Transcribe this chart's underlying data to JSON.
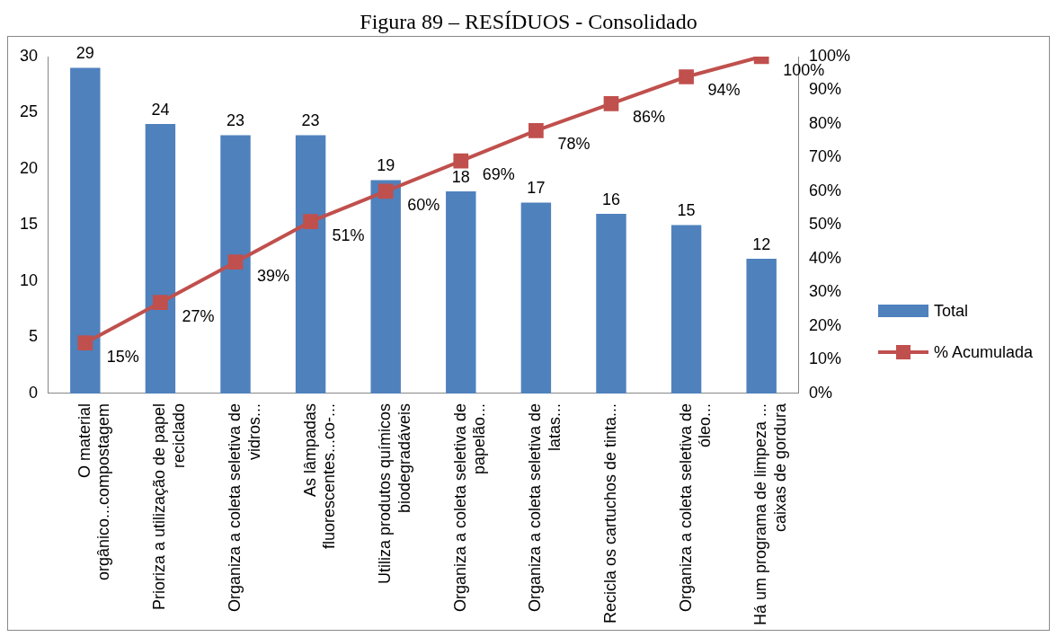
{
  "chart_data": {
    "type": "bar",
    "title": "Figura 89 – RESÍDUOS - Consolidado",
    "categories": [
      "O material\norgânico...compostagem",
      "Prioriza a utilização de papel\nreciclado",
      "Organiza a coleta seletiva de\nvidros...",
      "As lâmpadas\nfluorescentes...co-...",
      "Utiliza produtos químicos\nbiodegradáveis",
      "Organiza a coleta seletiva de\npapelão...",
      "Organiza a coleta seletiva de\nlatas...",
      "Recicla os cartuchos de tinta...",
      "Organiza a coleta seletiva de\nóleo...",
      "Há um programa de limpeza ...\ncaixas de gordura"
    ],
    "series": [
      {
        "name": "Total",
        "color": "#4f81bd",
        "values": [
          29,
          24,
          23,
          23,
          19,
          18,
          17,
          16,
          15,
          12
        ],
        "value_labels": [
          "29",
          "24",
          "23",
          "23",
          "19",
          "18",
          "17",
          "16",
          "15",
          "12"
        ]
      },
      {
        "name": "% Acumulada",
        "type": "line",
        "axis": "y2",
        "color": "#c0504d",
        "values": [
          15,
          27,
          39,
          51,
          60,
          69,
          78,
          86,
          94,
          100
        ],
        "value_labels": [
          "15%",
          "27%",
          "39%",
          "51%",
          "60%",
          "69%",
          "78%",
          "86%",
          "94%",
          "100%"
        ]
      }
    ],
    "ylim": [
      0,
      30
    ],
    "yticks": [
      0,
      5,
      10,
      15,
      20,
      25,
      30
    ],
    "y2lim": [
      0,
      100
    ],
    "y2ticks": [
      {
        "value": 0,
        "label": "0%"
      },
      {
        "value": 10,
        "label": "10%"
      },
      {
        "value": 20,
        "label": "20%"
      },
      {
        "value": 30,
        "label": "30%"
      },
      {
        "value": 40,
        "label": "40%"
      },
      {
        "value": 50,
        "label": "50%"
      },
      {
        "value": 60,
        "label": "60%"
      },
      {
        "value": 70,
        "label": "70%"
      },
      {
        "value": 80,
        "label": "80%"
      },
      {
        "value": 90,
        "label": "90%"
      },
      {
        "value": 100,
        "label": "100%"
      }
    ],
    "grid": false,
    "legend": "right",
    "marker": "square",
    "line_style": "solid"
  }
}
